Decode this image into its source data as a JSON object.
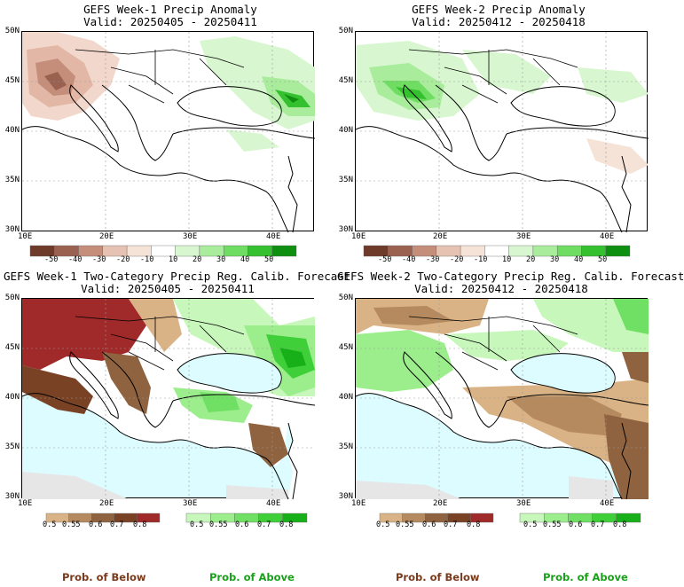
{
  "panels": [
    {
      "title": "GEFS Week-1 Precip Anomaly",
      "valid": "Valid: 20250405 - 20250411",
      "lat_labels": [
        "50N",
        "45N",
        "40N",
        "35N",
        "30N"
      ],
      "lon_labels": [
        "10E",
        "20E",
        "30E",
        "40E"
      ],
      "colorbar_labels": [
        "-50",
        "-40",
        "-30",
        "-20",
        "-10",
        "10",
        "20",
        "30",
        "40",
        "50"
      ]
    },
    {
      "title": "GEFS Week-2 Precip Anomaly",
      "valid": "Valid: 20250412 - 20250418",
      "lat_labels": [
        "50N",
        "45N",
        "40N",
        "35N",
        "30N"
      ],
      "lon_labels": [
        "10E",
        "20E",
        "30E",
        "40E"
      ],
      "colorbar_labels": [
        "-50",
        "-40",
        "-30",
        "-20",
        "-10",
        "10",
        "20",
        "30",
        "40",
        "50"
      ]
    },
    {
      "title": "GEFS Week-1 Two-Category Precip Reg. Calib. Forecast",
      "valid": "Valid: 20250405 - 20250411",
      "lat_labels": [
        "50N",
        "45N",
        "40N",
        "35N",
        "30N"
      ],
      "lon_labels": [
        "10E",
        "20E",
        "30E",
        "40E"
      ],
      "below_labels": [
        "0.5",
        "0.55",
        "0.6",
        "0.7",
        "0.8"
      ],
      "above_labels": [
        "0.5",
        "0.55",
        "0.6",
        "0.7",
        "0.8"
      ]
    },
    {
      "title": "GEFS Week-2 Two-Category Precip Reg. Calib. Forecast",
      "valid": "Valid: 20250412 - 20250418",
      "lat_labels": [
        "50N",
        "45N",
        "40N",
        "35N",
        "30N"
      ],
      "lon_labels": [
        "10E",
        "20E",
        "30E",
        "40E"
      ],
      "below_labels": [
        "0.5",
        "0.55",
        "0.6",
        "0.7",
        "0.8"
      ],
      "above_labels": [
        "0.5",
        "0.55",
        "0.6",
        "0.7",
        "0.8"
      ]
    }
  ],
  "legend": {
    "below_caption": "Prob. of Below",
    "above_caption": "Prob. of Above",
    "below_color": "#7a3a1c",
    "above_color": "#1aa01a"
  },
  "colors": {
    "anomaly_scale": [
      "#6e3a2a",
      "#9a6150",
      "#c48e7b",
      "#e6c2b2",
      "#f6e3d8",
      "#ffffff",
      "#d8f7d0",
      "#a8ec9c",
      "#6fdc62",
      "#35c02f",
      "#0e8f10"
    ],
    "below_scale": [
      "#d9b385",
      "#b58a5e",
      "#8f6340",
      "#7a4225",
      "#a02a2a"
    ],
    "above_scale": [
      "#c8f7bc",
      "#9cee8d",
      "#6fe063",
      "#3fcf38",
      "#18b018"
    ],
    "ocean": "#dcfcff",
    "no_data": "#e6e6e6"
  }
}
